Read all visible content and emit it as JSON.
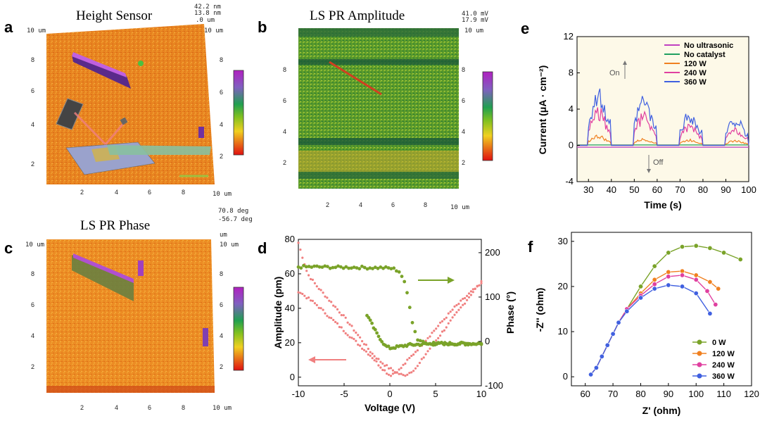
{
  "panels": {
    "a": {
      "label": "a",
      "title": "Height Sensor",
      "range_top": "42.2 nm",
      "range_bottom": "13.8 nm",
      "corner_zero": ".0 um",
      "corner_top_left": "10 um",
      "corner_top_right": "10 um",
      "corner_bottom_right": "10 um"
    },
    "b": {
      "label": "b",
      "title": "LS PR Amplitude",
      "range_top": "41.0 mV",
      "range_bottom": "17.9 mV",
      "corner_top_right": "10 um",
      "corner_bottom_right": "10 um"
    },
    "c": {
      "label": "c",
      "title": "LS PR Phase",
      "range_top": "70.8 deg",
      "range_bottom": "-56.7 deg",
      "corner_top_left": "10 um",
      "corner_top_right": "10 um",
      "corner_bottom_right": "10 um",
      "corner_unit": "um"
    },
    "d": {
      "label": "d"
    },
    "e": {
      "label": "e"
    },
    "f": {
      "label": "f"
    }
  },
  "afm_ticks": [
    "2",
    "4",
    "6",
    "8"
  ],
  "afm_ylabels": [
    "2",
    "4",
    "6",
    "8"
  ],
  "colors": {
    "afm_bg": "#e8821e",
    "amp": "#f08080",
    "phase": "#7aa329",
    "cb_top": "#c020c0",
    "cb_bottom": "#e01010"
  },
  "chart_data": [
    {
      "panel": "d",
      "type": "scatter",
      "xlabel": "Voltage (V)",
      "ylabel": "Amplitude (pm)",
      "y2label": "Phase (°)",
      "xlim": [
        -10,
        10
      ],
      "ylim": [
        -5,
        80
      ],
      "y2lim": [
        -100,
        230
      ],
      "xticks": [
        "-10",
        "-5",
        "0",
        "5",
        "10"
      ],
      "yticks": [
        "0",
        "20",
        "40",
        "60",
        "80"
      ],
      "y2ticks": [
        "-100",
        "0",
        "100",
        "200"
      ],
      "series": [
        {
          "axis": "left",
          "color": "#f08080",
          "x": [
            -10,
            -9,
            -8,
            -7,
            -6,
            -5,
            -4,
            -3,
            -2,
            -1,
            0,
            1,
            1.5,
            2,
            3,
            4,
            5,
            6,
            7,
            8,
            9,
            10
          ],
          "y": [
            78,
            60,
            53,
            47,
            41,
            35,
            28,
            21,
            14,
            9,
            5,
            2,
            1,
            2,
            6,
            14,
            21,
            28,
            35,
            42,
            49,
            55
          ]
        },
        {
          "axis": "left",
          "color": "#f08080",
          "x": [
            -10,
            -9,
            -8,
            -7,
            -6,
            -5,
            -4,
            -3,
            -2,
            -1,
            0,
            1,
            2,
            3,
            4,
            5,
            6,
            7,
            8,
            9,
            10
          ],
          "y": [
            50,
            46,
            42,
            37,
            32,
            27,
            22,
            17,
            12,
            6,
            1,
            4,
            10,
            16,
            22,
            28,
            34,
            40,
            45,
            50,
            54
          ]
        },
        {
          "axis": "right",
          "color": "#7aa329",
          "x": [
            -10,
            -8,
            -6,
            -4,
            -2,
            -1,
            0,
            0.5,
            1,
            1.5,
            2,
            2.5,
            3,
            4,
            6,
            8,
            10
          ],
          "y": [
            168,
            168,
            167,
            167,
            166,
            166,
            165,
            163,
            158,
            140,
            100,
            40,
            5,
            -3,
            -5,
            -5,
            -5
          ]
        },
        {
          "axis": "right",
          "color": "#7aa329",
          "x": [
            -2.5,
            -2,
            -1.5,
            -1,
            -0.5,
            0,
            1,
            2,
            4,
            6,
            8,
            10
          ],
          "y": [
            60,
            40,
            20,
            5,
            -10,
            -15,
            -12,
            -8,
            -6,
            -5,
            -5,
            -5
          ]
        }
      ]
    },
    {
      "panel": "e",
      "type": "line",
      "xlabel": "Time (s)",
      "ylabel": "Current (μA · cm⁻²)",
      "xlim": [
        25,
        100
      ],
      "ylim": [
        -4,
        12
      ],
      "xticks": [
        "30",
        "40",
        "50",
        "60",
        "70",
        "80",
        "90",
        "100"
      ],
      "yticks": [
        "-4",
        "0",
        "4",
        "8",
        "12"
      ],
      "on_label": "On",
      "off_label": "Off",
      "series": [
        {
          "name": "No ultrasonic",
          "color": "#c040c0",
          "peaks": [
            0,
            0,
            0,
            0
          ]
        },
        {
          "name": "No catalyst",
          "color": "#20a060",
          "peaks": [
            0,
            0,
            0,
            0
          ]
        },
        {
          "name": "120 W",
          "color": "#f08020",
          "peaks": [
            1.2,
            0.8,
            0.7,
            0.6
          ]
        },
        {
          "name": "240 W",
          "color": "#e040a0",
          "peaks": [
            4.5,
            3.8,
            2.5,
            2.0
          ]
        },
        {
          "name": "360 W",
          "color": "#4060e0",
          "peaks": [
            6.5,
            5.8,
            4.0,
            3.4
          ]
        }
      ],
      "on_intervals": [
        [
          30,
          40
        ],
        [
          50,
          60
        ],
        [
          70,
          80
        ],
        [
          90,
          100
        ]
      ]
    },
    {
      "panel": "f",
      "type": "line",
      "xlabel": "Z' (ohm)",
      "ylabel": "-Z'' (ohm)",
      "xlim": [
        55,
        120
      ],
      "ylim": [
        -2,
        32
      ],
      "xticks": [
        "60",
        "70",
        "80",
        "90",
        "100",
        "110",
        "120"
      ],
      "yticks": [
        "0",
        "10",
        "20",
        "30"
      ],
      "series": [
        {
          "name": "0 W",
          "color": "#7aa329",
          "x": [
            62,
            64,
            66,
            68,
            70,
            72,
            75,
            80,
            85,
            90,
            95,
            100,
            105,
            110,
            116
          ],
          "y": [
            0.5,
            2,
            4.5,
            7,
            9.5,
            12,
            15,
            20,
            24.5,
            27.5,
            28.8,
            29,
            28.5,
            27.5,
            26
          ]
        },
        {
          "name": "120 W",
          "color": "#f08020",
          "x": [
            62,
            64,
            66,
            68,
            70,
            72,
            75,
            80,
            85,
            90,
            95,
            100,
            105,
            108
          ],
          "y": [
            0.5,
            2,
            4.5,
            7,
            9.5,
            12,
            15,
            18.5,
            21.5,
            23.2,
            23.4,
            22.5,
            21,
            19.5
          ]
        },
        {
          "name": "240 W",
          "color": "#e040a0",
          "x": [
            62,
            64,
            66,
            68,
            70,
            72,
            75,
            80,
            85,
            90,
            95,
            100,
            104,
            107
          ],
          "y": [
            0.5,
            2,
            4.5,
            7,
            9.5,
            12,
            15,
            18,
            20.5,
            22.2,
            22.5,
            21.5,
            19,
            16
          ]
        },
        {
          "name": "360 W",
          "color": "#4060e0",
          "x": [
            62,
            64,
            66,
            68,
            70,
            72,
            75,
            80,
            85,
            90,
            95,
            100,
            105
          ],
          "y": [
            0.5,
            2,
            4.5,
            7,
            9.5,
            12,
            14.5,
            17.5,
            19.5,
            20.3,
            20,
            18.5,
            14
          ]
        }
      ]
    }
  ]
}
